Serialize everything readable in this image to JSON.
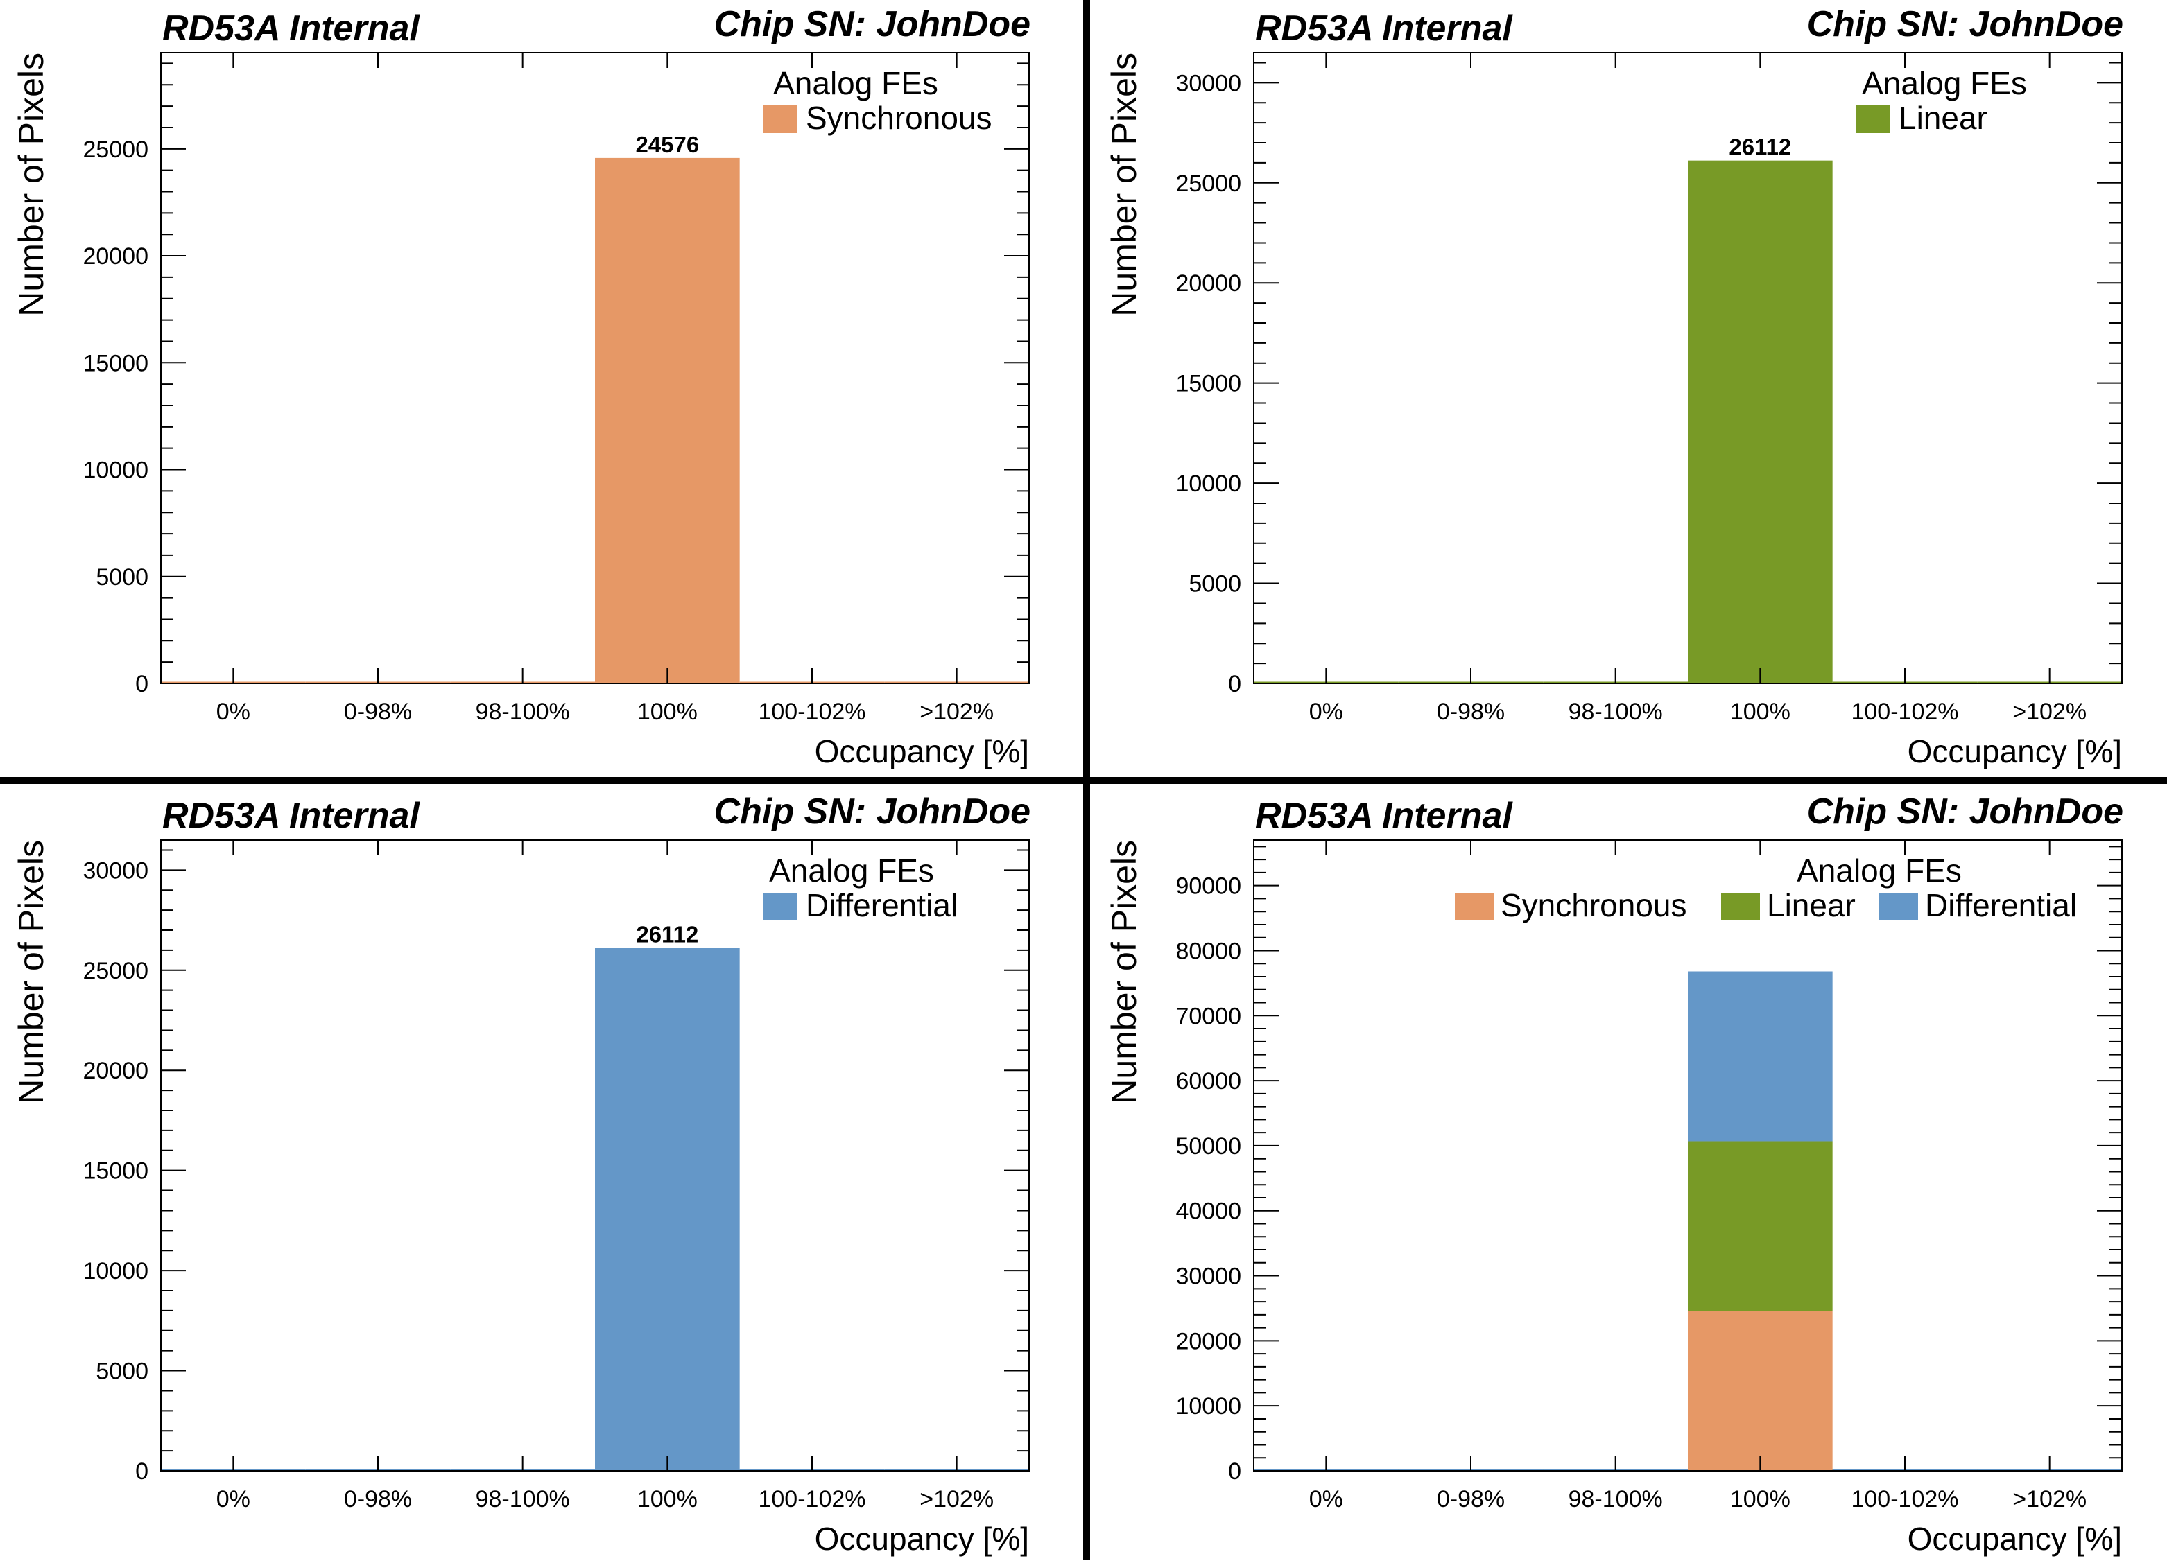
{
  "colors": {
    "synchronous": "#e69866",
    "linear": "#789a26",
    "differential": "#6497c8",
    "divider": "#000000"
  },
  "panels": [
    {
      "header_left": "RD53A Internal",
      "header_right": "Chip SN: JohnDoe",
      "legend_title": "Analog FEs",
      "legend_entries": [
        "Synchronous"
      ],
      "bar_label": "24576"
    },
    {
      "header_left": "RD53A Internal",
      "header_right": "Chip SN: JohnDoe",
      "legend_title": "Analog FEs",
      "legend_entries": [
        "Linear"
      ],
      "bar_label": "26112"
    },
    {
      "header_left": "RD53A Internal",
      "header_right": "Chip SN: JohnDoe",
      "legend_title": "Analog FEs",
      "legend_entries": [
        "Differential"
      ],
      "bar_label": "26112"
    },
    {
      "header_left": "RD53A Internal",
      "header_right": "Chip SN: JohnDoe",
      "legend_title": "Analog FEs",
      "legend_entries": [
        "Synchronous",
        "Linear",
        "Differential"
      ],
      "bar_label": ""
    }
  ],
  "chart_data": [
    {
      "type": "bar",
      "categories": [
        "0%",
        "0-98%",
        "98-100%",
        "100%",
        "100-102%",
        ">102%"
      ],
      "series": [
        {
          "name": "Synchronous",
          "values": [
            0,
            0,
            0,
            24576,
            0,
            0
          ],
          "color": "#e69866"
        }
      ],
      "xlabel": "Occupancy [%]",
      "ylabel": "Number of Pixels",
      "ylim": [
        0,
        29500
      ],
      "yticks": [
        0,
        5000,
        10000,
        15000,
        20000,
        25000
      ],
      "legend_title": "Analog FEs",
      "legend_position": "top-right",
      "data_labels": [
        "24576"
      ]
    },
    {
      "type": "bar",
      "categories": [
        "0%",
        "0-98%",
        "98-100%",
        "100%",
        "100-102%",
        ">102%"
      ],
      "series": [
        {
          "name": "Linear",
          "values": [
            0,
            0,
            0,
            26112,
            0,
            0
          ],
          "color": "#789a26"
        }
      ],
      "xlabel": "Occupancy [%]",
      "ylabel": "Number of Pixels",
      "ylim": [
        0,
        31500
      ],
      "yticks": [
        0,
        5000,
        10000,
        15000,
        20000,
        25000,
        30000
      ],
      "legend_title": "Analog FEs",
      "legend_position": "top-right",
      "data_labels": [
        "26112"
      ]
    },
    {
      "type": "bar",
      "categories": [
        "0%",
        "0-98%",
        "98-100%",
        "100%",
        "100-102%",
        ">102%"
      ],
      "series": [
        {
          "name": "Differential",
          "values": [
            0,
            0,
            0,
            26112,
            0,
            0
          ],
          "color": "#6497c8"
        }
      ],
      "xlabel": "Occupancy [%]",
      "ylabel": "Number of Pixels",
      "ylim": [
        0,
        31500
      ],
      "yticks": [
        0,
        5000,
        10000,
        15000,
        20000,
        25000,
        30000
      ],
      "legend_title": "Analog FEs",
      "legend_position": "top-right",
      "data_labels": [
        "26112"
      ]
    },
    {
      "type": "bar",
      "stacked": true,
      "categories": [
        "0%",
        "0-98%",
        "98-100%",
        "100%",
        "100-102%",
        ">102%"
      ],
      "series": [
        {
          "name": "Synchronous",
          "values": [
            0,
            0,
            0,
            24576,
            0,
            0
          ],
          "color": "#e69866"
        },
        {
          "name": "Linear",
          "values": [
            0,
            0,
            0,
            26112,
            0,
            0
          ],
          "color": "#789a26"
        },
        {
          "name": "Differential",
          "values": [
            0,
            0,
            0,
            26112,
            0,
            0
          ],
          "color": "#6497c8"
        }
      ],
      "xlabel": "Occupancy [%]",
      "ylabel": "Number of Pixels",
      "ylim": [
        0,
        97000
      ],
      "yticks": [
        0,
        10000,
        20000,
        30000,
        40000,
        50000,
        60000,
        70000,
        80000,
        90000
      ],
      "legend_title": "Analog FEs",
      "legend_position": "top-right",
      "data_labels": []
    }
  ]
}
